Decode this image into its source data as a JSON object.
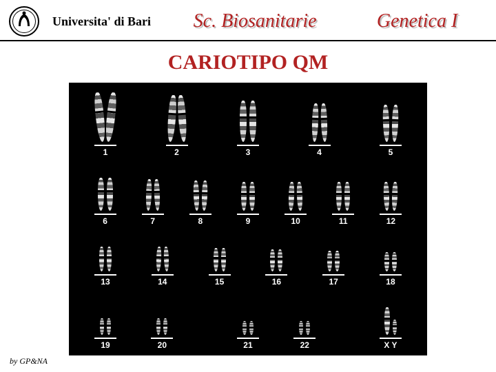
{
  "header": {
    "university": "Universita' di Bari",
    "course1": "Sc. Biosanitarie",
    "course2": "Genetica I"
  },
  "title": "CARIOTIPO QM",
  "credit": "by GP&NA",
  "karyotype": {
    "background": "#000000",
    "label_color": "#ffffff",
    "rows": [
      {
        "slots": [
          {
            "label": "1",
            "w": 12,
            "h": 72,
            "bend": -6
          },
          {
            "label": "2",
            "w": 11,
            "h": 68,
            "bend": 4
          },
          {
            "label": "3",
            "w": 10,
            "h": 60,
            "bend": 0
          },
          {
            "label": "4",
            "w": 9,
            "h": 56,
            "bend": 2
          },
          {
            "label": "5",
            "w": 9,
            "h": 54,
            "bend": -2
          }
        ]
      },
      {
        "slots": [
          {
            "label": "6",
            "w": 9,
            "h": 48,
            "bend": 0
          },
          {
            "label": "7",
            "w": 8,
            "h": 46,
            "bend": 2
          },
          {
            "label": "8",
            "w": 8,
            "h": 44,
            "bend": -2
          },
          {
            "label": "9",
            "w": 8,
            "h": 42,
            "bend": 0
          },
          {
            "label": "10",
            "w": 8,
            "h": 42,
            "bend": 2
          },
          {
            "label": "11",
            "w": 8,
            "h": 42,
            "bend": 0
          },
          {
            "label": "12",
            "w": 8,
            "h": 42,
            "bend": -2
          }
        ]
      },
      {
        "slots": [
          {
            "label": "13",
            "w": 7,
            "h": 36,
            "bend": 0
          },
          {
            "label": "14",
            "w": 7,
            "h": 36,
            "bend": 2
          },
          {
            "label": "15",
            "w": 7,
            "h": 34,
            "bend": 0
          },
          {
            "label": "16",
            "w": 7,
            "h": 32,
            "bend": 0
          },
          {
            "label": "17",
            "w": 7,
            "h": 30,
            "bend": 0
          },
          {
            "label": "18",
            "w": 7,
            "h": 28,
            "bend": 0
          }
        ]
      },
      {
        "slots": [
          {
            "label": "19",
            "w": 6,
            "h": 24,
            "bend": 0
          },
          {
            "label": "20",
            "w": 6,
            "h": 24,
            "bend": 0
          },
          {
            "gap": true
          },
          {
            "label": "21",
            "w": 6,
            "h": 20,
            "bend": 0
          },
          {
            "label": "22",
            "w": 6,
            "h": 20,
            "bend": 0
          },
          {
            "gap": true
          },
          {
            "label": "X Y",
            "w": 8,
            "h": 40,
            "w2": 6,
            "h2": 22,
            "bend": 0
          }
        ]
      }
    ]
  }
}
